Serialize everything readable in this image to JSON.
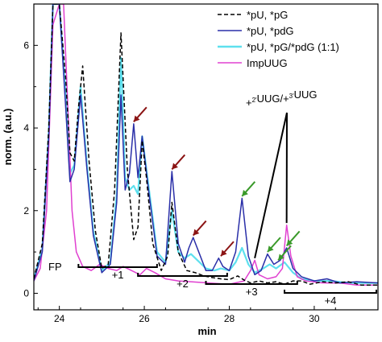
{
  "chart_data": {
    "type": "line",
    "xlabel": "min",
    "ylabel": "norm. (a.u.)",
    "xlim": [
      23.4,
      31.5
    ],
    "ylim": [
      -0.4,
      7.0
    ],
    "x_ticks": [
      24,
      26,
      28,
      30
    ],
    "y_ticks": [
      0,
      2,
      4,
      6
    ],
    "legend_position": "top-right",
    "series": [
      {
        "name": "*pU, *pG",
        "color": "#000000",
        "dash": "dashed",
        "points": [
          [
            23.4,
            0.35
          ],
          [
            23.6,
            1.2
          ],
          [
            23.75,
            4.0
          ],
          [
            23.85,
            7.0
          ],
          [
            24.0,
            7.0
          ],
          [
            24.15,
            5.2
          ],
          [
            24.25,
            3.4
          ],
          [
            24.35,
            3.2
          ],
          [
            24.45,
            4.5
          ],
          [
            24.55,
            5.5
          ],
          [
            24.7,
            3.2
          ],
          [
            24.85,
            1.5
          ],
          [
            25.0,
            0.6
          ],
          [
            25.15,
            0.7
          ],
          [
            25.3,
            2.5
          ],
          [
            25.45,
            6.3
          ],
          [
            25.6,
            3.0
          ],
          [
            25.75,
            1.3
          ],
          [
            25.85,
            1.6
          ],
          [
            25.95,
            3.7
          ],
          [
            26.05,
            2.8
          ],
          [
            26.2,
            1.2
          ],
          [
            26.4,
            0.55
          ],
          [
            26.55,
            0.9
          ],
          [
            26.65,
            2.2
          ],
          [
            26.8,
            1.0
          ],
          [
            27.0,
            0.55
          ],
          [
            27.2,
            0.5
          ],
          [
            27.4,
            0.42
          ],
          [
            27.6,
            0.38
          ],
          [
            27.8,
            0.35
          ],
          [
            28.0,
            0.33
          ],
          [
            28.2,
            0.42
          ],
          [
            28.35,
            0.32
          ],
          [
            28.5,
            0.25
          ],
          [
            28.7,
            0.3
          ],
          [
            28.9,
            0.25
          ],
          [
            29.1,
            0.28
          ],
          [
            29.3,
            0.22
          ],
          [
            29.5,
            0.3
          ],
          [
            29.7,
            0.3
          ],
          [
            29.9,
            0.22
          ],
          [
            30.2,
            0.28
          ],
          [
            30.5,
            0.25
          ],
          [
            30.8,
            0.28
          ],
          [
            31.1,
            0.2
          ],
          [
            31.5,
            0.2
          ]
        ]
      },
      {
        "name": "*pU, *pdG",
        "color": "#2a2fa8",
        "dash": "solid",
        "points": [
          [
            23.4,
            0.3
          ],
          [
            23.6,
            1.0
          ],
          [
            23.75,
            3.8
          ],
          [
            23.85,
            7.0
          ],
          [
            24.0,
            7.0
          ],
          [
            24.15,
            4.5
          ],
          [
            24.25,
            2.7
          ],
          [
            24.35,
            3.0
          ],
          [
            24.5,
            4.8
          ],
          [
            24.65,
            3.0
          ],
          [
            24.8,
            1.4
          ],
          [
            25.0,
            0.5
          ],
          [
            25.2,
            0.7
          ],
          [
            25.35,
            2.2
          ],
          [
            25.45,
            4.8
          ],
          [
            25.55,
            2.5
          ],
          [
            25.65,
            2.9
          ],
          [
            25.75,
            4.1
          ],
          [
            25.85,
            2.8
          ],
          [
            25.95,
            3.8
          ],
          [
            26.1,
            2.5
          ],
          [
            26.3,
            0.9
          ],
          [
            26.5,
            0.7
          ],
          [
            26.65,
            2.95
          ],
          [
            26.8,
            1.2
          ],
          [
            26.95,
            0.75
          ],
          [
            27.05,
            1.1
          ],
          [
            27.15,
            1.35
          ],
          [
            27.3,
            0.95
          ],
          [
            27.45,
            0.55
          ],
          [
            27.6,
            0.55
          ],
          [
            27.75,
            0.85
          ],
          [
            27.85,
            0.65
          ],
          [
            28.0,
            0.55
          ],
          [
            28.15,
            1.0
          ],
          [
            28.3,
            2.3
          ],
          [
            28.45,
            0.9
          ],
          [
            28.6,
            0.45
          ],
          [
            28.75,
            0.55
          ],
          [
            28.9,
            0.95
          ],
          [
            29.05,
            0.7
          ],
          [
            29.2,
            0.8
          ],
          [
            29.35,
            1.1
          ],
          [
            29.5,
            0.6
          ],
          [
            29.7,
            0.4
          ],
          [
            30.0,
            0.3
          ],
          [
            30.3,
            0.35
          ],
          [
            30.6,
            0.25
          ],
          [
            31.0,
            0.28
          ],
          [
            31.5,
            0.25
          ]
        ]
      },
      {
        "name": "*pU, *pG/*pdG (1:1)",
        "color": "#5ee0ee",
        "dash": "solid",
        "points": [
          [
            23.4,
            0.35
          ],
          [
            23.6,
            1.1
          ],
          [
            23.75,
            3.9
          ],
          [
            23.85,
            7.0
          ],
          [
            24.0,
            7.0
          ],
          [
            24.15,
            4.8
          ],
          [
            24.25,
            2.9
          ],
          [
            24.35,
            3.1
          ],
          [
            24.5,
            5.0
          ],
          [
            24.65,
            3.1
          ],
          [
            24.8,
            1.5
          ],
          [
            25.0,
            0.55
          ],
          [
            25.2,
            0.75
          ],
          [
            25.35,
            2.4
          ],
          [
            25.45,
            5.7
          ],
          [
            25.55,
            2.8
          ],
          [
            25.65,
            2.5
          ],
          [
            25.75,
            2.6
          ],
          [
            25.85,
            2.4
          ],
          [
            25.95,
            3.8
          ],
          [
            26.1,
            2.6
          ],
          [
            26.3,
            1.0
          ],
          [
            26.5,
            0.75
          ],
          [
            26.65,
            2.0
          ],
          [
            26.8,
            1.0
          ],
          [
            26.95,
            0.85
          ],
          [
            27.1,
            0.95
          ],
          [
            27.25,
            0.8
          ],
          [
            27.45,
            0.6
          ],
          [
            27.65,
            0.55
          ],
          [
            27.8,
            0.6
          ],
          [
            28.0,
            0.55
          ],
          [
            28.15,
            0.75
          ],
          [
            28.3,
            1.1
          ],
          [
            28.45,
            0.7
          ],
          [
            28.6,
            0.5
          ],
          [
            28.8,
            0.6
          ],
          [
            28.95,
            0.7
          ],
          [
            29.1,
            0.6
          ],
          [
            29.3,
            0.75
          ],
          [
            29.5,
            0.5
          ],
          [
            29.7,
            0.35
          ],
          [
            30.0,
            0.3
          ],
          [
            30.4,
            0.3
          ],
          [
            30.8,
            0.25
          ],
          [
            31.5,
            0.25
          ]
        ]
      },
      {
        "name": "ImpUUG",
        "color": "#e040d0",
        "dash": "solid",
        "points": [
          [
            23.4,
            0.3
          ],
          [
            23.55,
            0.6
          ],
          [
            23.7,
            2.0
          ],
          [
            23.85,
            6.5
          ],
          [
            24.0,
            7.0
          ],
          [
            24.1,
            7.0
          ],
          [
            24.2,
            4.5
          ],
          [
            24.3,
            2.0
          ],
          [
            24.4,
            1.0
          ],
          [
            24.55,
            0.65
          ],
          [
            24.75,
            0.55
          ],
          [
            24.95,
            0.7
          ],
          [
            25.15,
            0.6
          ],
          [
            25.35,
            0.55
          ],
          [
            25.5,
            0.65
          ],
          [
            25.7,
            0.55
          ],
          [
            25.9,
            0.45
          ],
          [
            26.05,
            0.6
          ],
          [
            26.25,
            0.5
          ],
          [
            26.5,
            0.35
          ],
          [
            26.8,
            0.3
          ],
          [
            27.1,
            0.28
          ],
          [
            27.5,
            0.25
          ],
          [
            28.0,
            0.22
          ],
          [
            28.35,
            0.3
          ],
          [
            28.5,
            0.55
          ],
          [
            28.6,
            0.8
          ],
          [
            28.7,
            0.45
          ],
          [
            28.9,
            0.35
          ],
          [
            29.1,
            0.4
          ],
          [
            29.25,
            0.6
          ],
          [
            29.35,
            1.65
          ],
          [
            29.45,
            0.9
          ],
          [
            29.6,
            0.4
          ],
          [
            29.8,
            0.3
          ],
          [
            30.2,
            0.25
          ],
          [
            30.6,
            0.25
          ],
          [
            31.0,
            0.2
          ],
          [
            31.5,
            0.2
          ]
        ]
      }
    ],
    "fragment_brackets": [
      {
        "label": "+1",
        "x_start": 24.45,
        "x_end": 26.3
      },
      {
        "label": "+2",
        "x_start": 25.85,
        "x_end": 27.95
      },
      {
        "label": "+3",
        "x_start": 27.45,
        "x_end": 29.6
      },
      {
        "label": "+4",
        "x_start": 29.3,
        "x_end": 31.5
      }
    ],
    "annotations": {
      "fp_label": "FP",
      "uug_label_prefix": "+",
      "uug_sup1": "2'",
      "uug_mid": "UUG/+",
      "uug_sup2": "3'",
      "uug_suffix": "UUG",
      "red_arrow_targets": [
        [
          25.75,
          4.15
        ],
        [
          26.65,
          3.0
        ],
        [
          27.15,
          1.4
        ],
        [
          27.8,
          0.9
        ]
      ],
      "green_arrow_targets": [
        [
          28.3,
          2.35
        ],
        [
          28.9,
          1.0
        ],
        [
          29.15,
          0.8
        ],
        [
          29.35,
          1.15
        ]
      ],
      "uug_line_targets": [
        [
          28.6,
          0.85
        ],
        [
          29.35,
          1.7
        ]
      ],
      "red_arrow_color": "#8b1414",
      "green_arrow_color": "#3a9a2a"
    }
  }
}
